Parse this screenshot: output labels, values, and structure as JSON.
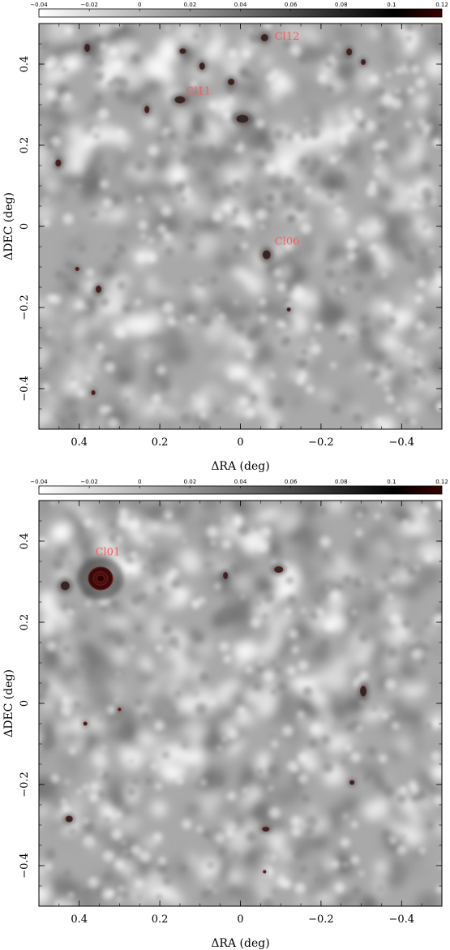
{
  "chart_data": [
    {
      "type": "heatmap",
      "xlabel": "ΔRA (deg)",
      "ylabel": "ΔDEC (deg)",
      "xlim": [
        0.5,
        -0.5
      ],
      "ylim": [
        -0.5,
        0.5
      ],
      "xticks": [
        0.4,
        0.2,
        0,
        -0.2,
        -0.4
      ],
      "xtick_labels": [
        "0.4",
        "0.2",
        "0",
        "−0.2",
        "−0.4"
      ],
      "yticks": [
        -0.4,
        -0.2,
        0,
        0.2,
        0.4
      ],
      "ytick_labels": [
        "−0.4",
        "−0.2",
        "0",
        "0.2",
        "0.4"
      ],
      "colorbar": {
        "range": [
          -0.04,
          0.12
        ],
        "ticks": [
          -0.04,
          -0.02,
          0,
          0.02,
          0.04,
          0.06,
          0.08,
          0.1,
          0.12
        ],
        "tick_labels": [
          "−0.04",
          "−0.02",
          "0",
          "0.02",
          "0.04",
          "0.06",
          "0.08",
          "0.1",
          "0.12"
        ],
        "colormap": [
          "#ffffff",
          "#000000",
          "#3a0000"
        ]
      },
      "contour_color": "#6b1a1a",
      "sources": [
        {
          "x": -0.06,
          "y": 0.465,
          "rx": 0.008,
          "ry": 0.008
        },
        {
          "x": 0.15,
          "y": 0.312,
          "rx": 0.012,
          "ry": 0.008
        },
        {
          "x": -0.065,
          "y": -0.07,
          "rx": 0.009,
          "ry": 0.01
        },
        {
          "x": 0.38,
          "y": 0.44,
          "rx": 0.006,
          "ry": 0.009
        },
        {
          "x": 0.143,
          "y": 0.432,
          "rx": 0.007,
          "ry": 0.006
        },
        {
          "x": 0.095,
          "y": 0.395,
          "rx": 0.006,
          "ry": 0.008
        },
        {
          "x": 0.023,
          "y": 0.356,
          "rx": 0.007,
          "ry": 0.007
        },
        {
          "x": -0.005,
          "y": 0.265,
          "rx": 0.014,
          "ry": 0.009
        },
        {
          "x": 0.232,
          "y": 0.288,
          "rx": 0.005,
          "ry": 0.008
        },
        {
          "x": 0.452,
          "y": 0.156,
          "rx": 0.006,
          "ry": 0.008
        },
        {
          "x": -0.27,
          "y": 0.43,
          "rx": 0.006,
          "ry": 0.008
        },
        {
          "x": -0.305,
          "y": 0.405,
          "rx": 0.005,
          "ry": 0.006
        },
        {
          "x": 0.405,
          "y": -0.105,
          "rx": 0.004,
          "ry": 0.004
        },
        {
          "x": 0.352,
          "y": -0.155,
          "rx": 0.006,
          "ry": 0.008
        },
        {
          "x": -0.12,
          "y": -0.205,
          "rx": 0.004,
          "ry": 0.004
        },
        {
          "x": 0.365,
          "y": -0.41,
          "rx": 0.004,
          "ry": 0.005
        }
      ],
      "annotations": [
        {
          "text": "Cl12",
          "x": -0.085,
          "y": 0.46
        },
        {
          "text": "Cl11",
          "x": 0.135,
          "y": 0.325
        },
        {
          "text": "Cl06",
          "x": -0.085,
          "y": -0.045
        }
      ]
    },
    {
      "type": "heatmap",
      "xlabel": "ΔRA (deg)",
      "ylabel": "ΔDEC (deg)",
      "xlim": [
        0.5,
        -0.5
      ],
      "ylim": [
        -0.5,
        0.5
      ],
      "xticks": [
        0.4,
        0.2,
        0,
        -0.2,
        -0.4
      ],
      "xtick_labels": [
        "0.4",
        "0.2",
        "0",
        "−0.2",
        "−0.4"
      ],
      "yticks": [
        -0.4,
        -0.2,
        0,
        0.2,
        0.4
      ],
      "ytick_labels": [
        "−0.4",
        "−0.2",
        "0",
        "0.2",
        "0.4"
      ],
      "colorbar": {
        "range": [
          -0.04,
          0.12
        ],
        "ticks": [
          -0.04,
          -0.02,
          0,
          0.02,
          0.04,
          0.06,
          0.08,
          0.1,
          0.12
        ],
        "tick_labels": [
          "−0.04",
          "−0.02",
          "0",
          "0.02",
          "0.04",
          "0.06",
          "0.08",
          "0.1",
          "0.12"
        ],
        "colormap": [
          "#ffffff",
          "#000000",
          "#3a0000"
        ]
      },
      "contour_color": "#6b1a1a",
      "sources": [
        {
          "x": 0.347,
          "y": 0.308,
          "rx": 0.03,
          "ry": 0.028,
          "strong": true
        },
        {
          "x": 0.435,
          "y": 0.29,
          "rx": 0.01,
          "ry": 0.01
        },
        {
          "x": 0.037,
          "y": 0.315,
          "rx": 0.005,
          "ry": 0.008
        },
        {
          "x": -0.095,
          "y": 0.33,
          "rx": 0.01,
          "ry": 0.007
        },
        {
          "x": -0.305,
          "y": 0.03,
          "rx": 0.007,
          "ry": 0.012
        },
        {
          "x": 0.385,
          "y": -0.05,
          "rx": 0.004,
          "ry": 0.004
        },
        {
          "x": 0.3,
          "y": -0.015,
          "rx": 0.003,
          "ry": 0.003
        },
        {
          "x": -0.277,
          "y": -0.195,
          "rx": 0.005,
          "ry": 0.005
        },
        {
          "x": 0.425,
          "y": -0.285,
          "rx": 0.008,
          "ry": 0.007
        },
        {
          "x": -0.063,
          "y": -0.31,
          "rx": 0.008,
          "ry": 0.005
        },
        {
          "x": -0.06,
          "y": -0.415,
          "rx": 0.003,
          "ry": 0.003
        }
      ],
      "annotations": [
        {
          "text": "Cl01",
          "x": 0.36,
          "y": 0.365
        }
      ]
    }
  ]
}
